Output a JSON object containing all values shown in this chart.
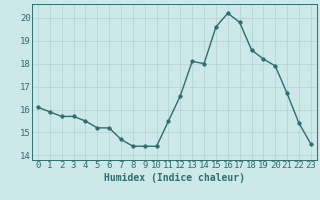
{
  "x": [
    0,
    1,
    2,
    3,
    4,
    5,
    6,
    7,
    8,
    9,
    10,
    11,
    12,
    13,
    14,
    15,
    16,
    17,
    18,
    19,
    20,
    21,
    22,
    23
  ],
  "y": [
    16.1,
    15.9,
    15.7,
    15.7,
    15.5,
    15.2,
    15.2,
    14.7,
    14.4,
    14.4,
    14.4,
    15.5,
    16.6,
    18.1,
    18.0,
    19.6,
    20.2,
    19.8,
    18.6,
    18.2,
    17.9,
    16.7,
    15.4,
    14.5
  ],
  "xlabel": "Humidex (Indice chaleur)",
  "ylim": [
    13.8,
    20.6
  ],
  "xlim": [
    -0.5,
    23.5
  ],
  "yticks": [
    14,
    15,
    16,
    17,
    18,
    19,
    20
  ],
  "xticks": [
    0,
    1,
    2,
    3,
    4,
    5,
    6,
    7,
    8,
    9,
    10,
    11,
    12,
    13,
    14,
    15,
    16,
    17,
    18,
    19,
    20,
    21,
    22,
    23
  ],
  "line_color": "#2d6e6e",
  "marker_color": "#2d6e6e",
  "bg_color": "#cce8e8",
  "grid_color": "#b8d4d4",
  "axis_color": "#2d6e6e",
  "xlabel_fontsize": 7,
  "tick_fontsize": 6.5,
  "line_width": 1.0,
  "marker_size": 2.5
}
